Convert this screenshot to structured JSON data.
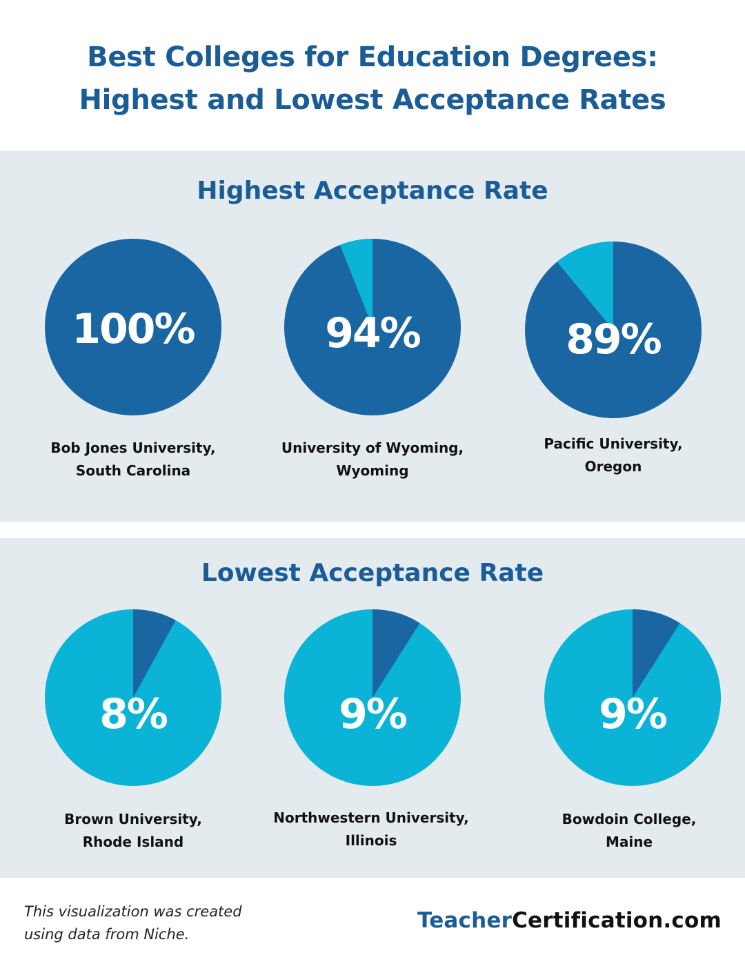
{
  "title_line1": "Best Colleges for Education Degrees:",
  "title_line2": "Highest and Lowest Acceptance Rates",
  "colors": {
    "dark": "#1a66a3",
    "light": "#0bb3d6",
    "title": "#1a5c96"
  },
  "chart_data": [
    {
      "type": "pie",
      "title": "Highest Acceptance Rate",
      "items": [
        {
          "label": "100%",
          "value": 100,
          "name_line1": "Bob Jones University,",
          "name_line2": "South Carolina"
        },
        {
          "label": "94%",
          "value": 94,
          "name_line1": "University of Wyoming,",
          "name_line2": "Wyoming"
        },
        {
          "label": "89%",
          "value": 89,
          "name_line1": "Pacific University,",
          "name_line2": "Oregon"
        }
      ]
    },
    {
      "type": "pie",
      "title": "Lowest Acceptance Rate",
      "items": [
        {
          "label": "8%",
          "value": 8,
          "name_line1": "Brown University,",
          "name_line2": "Rhode Island"
        },
        {
          "label": "9%",
          "value": 9,
          "name_line1": "Northwestern University,",
          "name_line2": "Illinois"
        },
        {
          "label": "9%",
          "value": 9,
          "name_line1": "Bowdoin College,",
          "name_line2": "Maine"
        }
      ]
    }
  ],
  "footer": {
    "note_line1": "This visualization was created",
    "note_line2": "using data from Niche.",
    "brand_part1": "Teacher",
    "brand_part2": "Certification.com"
  }
}
